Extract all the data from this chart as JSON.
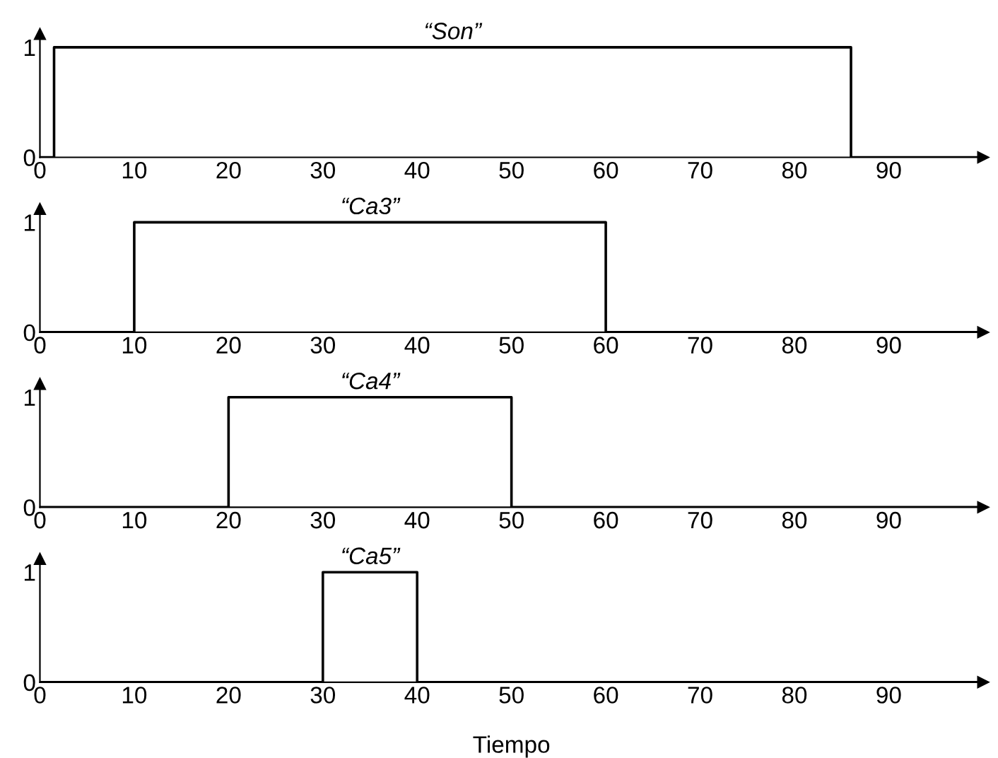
{
  "chart_data": [
    {
      "type": "step",
      "title": "“Son”",
      "x": [
        0,
        1.5,
        86,
        100
      ],
      "values": [
        0,
        1,
        0,
        0
      ],
      "color": "#000000",
      "xlim": [
        0,
        100
      ],
      "ylim": [
        0,
        1.12
      ],
      "xticks": [
        0,
        10,
        20,
        30,
        40,
        50,
        60,
        70,
        80,
        90
      ],
      "yticks": [
        0,
        1
      ],
      "grid": false,
      "legend": false
    },
    {
      "type": "step",
      "title": "“Ca3”",
      "x": [
        0,
        10,
        60,
        100
      ],
      "values": [
        0,
        1,
        0,
        0
      ],
      "color": "#000000",
      "xlim": [
        0,
        100
      ],
      "ylim": [
        0,
        1.12
      ],
      "xticks": [
        0,
        10,
        20,
        30,
        40,
        50,
        60,
        70,
        80,
        90
      ],
      "yticks": [
        0,
        1
      ],
      "grid": false,
      "legend": false
    },
    {
      "type": "step",
      "title": "“Ca4”",
      "x": [
        0,
        20,
        50,
        100
      ],
      "values": [
        0,
        1,
        0,
        0
      ],
      "color": "#000000",
      "xlim": [
        0,
        100
      ],
      "ylim": [
        0,
        1.12
      ],
      "xticks": [
        0,
        10,
        20,
        30,
        40,
        50,
        60,
        70,
        80,
        90
      ],
      "yticks": [
        0,
        1
      ],
      "grid": false,
      "legend": false
    },
    {
      "type": "step",
      "title": "“Ca5”",
      "xlabel": "Tiempo",
      "x": [
        0,
        30,
        40,
        100
      ],
      "values": [
        0,
        1,
        0,
        0
      ],
      "color": "#000000",
      "xlim": [
        0,
        100
      ],
      "ylim": [
        0,
        1.12
      ],
      "xticks": [
        0,
        10,
        20,
        30,
        40,
        50,
        60,
        70,
        80,
        90
      ],
      "yticks": [
        0,
        1
      ],
      "grid": false,
      "legend": false
    }
  ]
}
